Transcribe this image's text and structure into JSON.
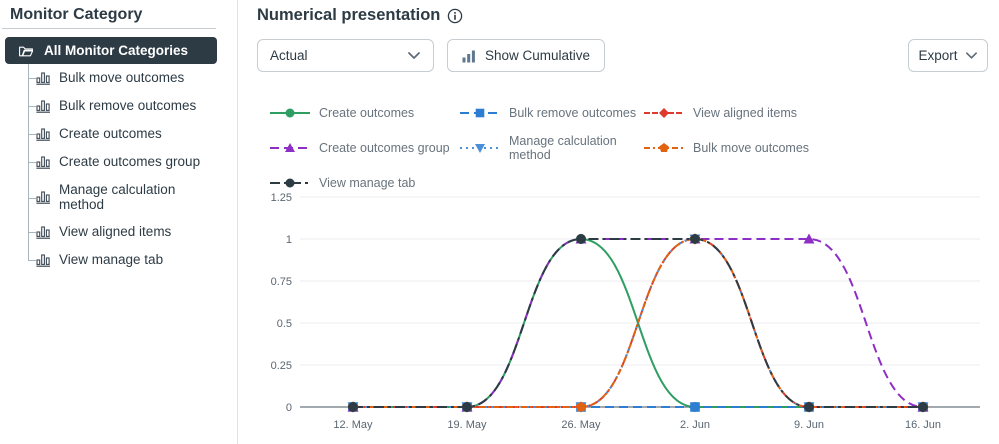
{
  "sidebar": {
    "title": "Monitor Category",
    "selected": {
      "label": "All Monitor Categories"
    },
    "items": [
      "Bulk move outcomes",
      "Bulk remove outcomes",
      "Create outcomes",
      "Create outcomes group",
      "Manage calculation method",
      "View aligned items",
      "View manage tab"
    ]
  },
  "main": {
    "title": "Numerical presentation",
    "controls": {
      "actual_value": "Actual",
      "show_cumulative_label": "Show Cumulative",
      "export_label": "Export"
    }
  },
  "colors": {
    "sidebar_selected_bg": "#2d3b45",
    "text_dark": "#2d3b45",
    "legend_text": "#68737d",
    "grid": "#eceef0",
    "axis": "#6b7780",
    "tick_text": "#5a6671"
  },
  "chart_data": {
    "type": "line",
    "x": [
      "12. May",
      "19. May",
      "26. May",
      "2. Jun",
      "9. Jun",
      "16. Jun"
    ],
    "ylim": [
      0,
      1.25
    ],
    "yticks": [
      0,
      0.25,
      0.5,
      0.75,
      1,
      1.25
    ],
    "ytick_labels": [
      "0",
      "0.25",
      "0.5",
      "0.75",
      "1",
      "1.25"
    ],
    "grid": true,
    "legend_position": "top",
    "series": [
      {
        "name": "Create outcomes",
        "color": "#2e9e62",
        "dash": "solid",
        "marker": "circle",
        "values": [
          0,
          0,
          1,
          0,
          0,
          0
        ]
      },
      {
        "name": "Bulk remove outcomes",
        "color": "#2d7ed3",
        "dash": "dash",
        "marker": "square",
        "values": [
          0,
          0,
          0,
          0,
          0,
          0
        ]
      },
      {
        "name": "View aligned items",
        "color": "#dd3a2d",
        "dash": "shortdash",
        "marker": "diamond",
        "values": [
          0,
          0,
          0,
          1,
          0,
          0
        ]
      },
      {
        "name": "Create outcomes group",
        "color": "#8d2ec4",
        "dash": "dash",
        "marker": "triangle-up",
        "values": [
          0,
          0,
          1,
          1,
          1,
          0
        ]
      },
      {
        "name": "Manage calculation method",
        "color": "#4a90d9",
        "dash": "dot",
        "marker": "triangle-down",
        "values": [
          0,
          0,
          0,
          1,
          0,
          0
        ]
      },
      {
        "name": "Bulk move outcomes",
        "color": "#e2620f",
        "dash": "shortdashdot",
        "marker": "pentagon",
        "values": [
          0,
          0,
          0,
          1,
          0,
          0
        ]
      },
      {
        "name": "View manage tab",
        "color": "#2d3b45",
        "dash": "dashdot",
        "marker": "circle",
        "values": [
          0,
          0,
          1,
          1,
          0,
          0
        ]
      }
    ]
  }
}
